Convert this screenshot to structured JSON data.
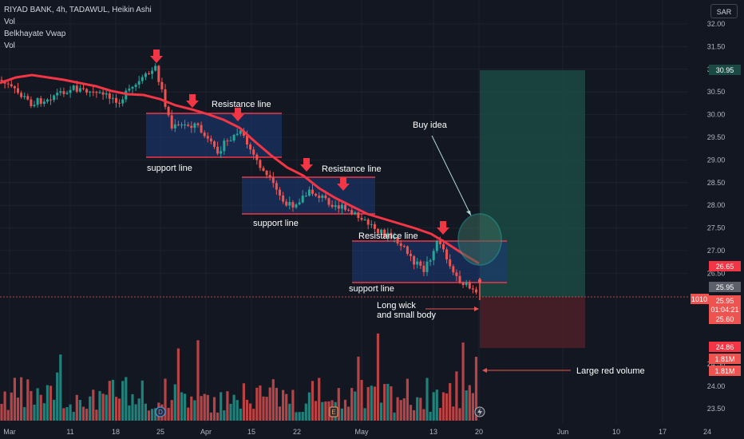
{
  "legend": {
    "symbol_line": "RIYAD BANK, 4h, TADAWUL, Heikin Ashi",
    "vol1": "Vol",
    "vwap": "Belkhayate Vwap",
    "vol2": "Vol"
  },
  "currency": "SAR",
  "colors": {
    "background": "#131722",
    "bull": "#26a69a",
    "bear": "#ef5350",
    "vwap_line": "#f23645",
    "zone_fill": "#1c3a7a",
    "target_zone": "#1b4a44",
    "stop_zone": "#4a1f27",
    "grid": "#1e222d",
    "axis_text": "#b2b5be"
  },
  "chart_data": {
    "type": "candlestick",
    "title": "RIYAD BANK, 4h, TADAWUL, Heikin Ashi",
    "y_axis": {
      "ticks": [
        "31.50",
        "31.00",
        "30.50",
        "30.00",
        "29.50",
        "29.00",
        "28.50",
        "28.00",
        "27.50",
        "27.00",
        "26.50",
        "26.00",
        "25.50",
        "25.00",
        "24.50",
        "24.00",
        "23.50"
      ],
      "price_ticks": [
        "32.00",
        "31.50",
        "31.00",
        "30.50",
        "30.00",
        "29.50",
        "29.00",
        "28.50",
        "28.00",
        "27.50",
        "27.00",
        "26.50"
      ],
      "volume_ticks": [
        "24.50",
        "24.00",
        "23.50"
      ],
      "top_label": "32.00"
    },
    "x_axis": {
      "ticks": [
        "Mar",
        "11",
        "18",
        "25",
        "Apr",
        "15",
        "22",
        "May",
        "13",
        "20",
        "Jun",
        "10",
        "17",
        "24"
      ]
    },
    "price_badges": [
      {
        "label": "30.95",
        "color": "#1b4a44"
      },
      {
        "label": "26.65",
        "color": "#f23645"
      },
      {
        "label": "25.95",
        "color": "#5d606b"
      },
      {
        "label": "25.95",
        "sub": "01:04:21",
        "color": "#ef5350"
      },
      {
        "label": "25.60",
        "color": "#ef5350"
      },
      {
        "label": "24.86",
        "color": "#f23645"
      },
      {
        "label": "1.81M",
        "color": "#ef5350"
      },
      {
        "label": "1.81M",
        "color": "#ef5350"
      }
    ],
    "left_badge": "1010",
    "vwap_line": [
      {
        "time": "Mar",
        "price": 30.8
      },
      {
        "time": "11",
        "price": 30.7
      },
      {
        "time": "18",
        "price": 30.5
      },
      {
        "time": "25",
        "price": 30.45
      },
      {
        "time": "Apr",
        "price": 30.1
      },
      {
        "time": "15",
        "price": 29.7
      },
      {
        "time": "22",
        "price": 28.7
      },
      {
        "time": "May",
        "price": 27.9
      },
      {
        "time": "13",
        "price": 27.4
      },
      {
        "time": "20",
        "price": 26.65
      }
    ],
    "zones": [
      {
        "name": "zone-1",
        "resistance": 30.0,
        "support": 29.0
      },
      {
        "name": "zone-2",
        "resistance": 28.55,
        "support": 27.75
      },
      {
        "name": "zone-3",
        "resistance": 27.2,
        "support": 26.25
      }
    ],
    "trade": {
      "entry": 25.95,
      "target": 30.95,
      "stop": 25.0
    }
  },
  "annotations": {
    "resistance_1": "Resistance line",
    "resistance_2": "Resistance line",
    "resistance_3": "Resistance line",
    "support_1": "support line",
    "support_2": "support line",
    "support_3": "support line",
    "buy_idea": "Buy idea",
    "long_wick_1": "Long wick",
    "long_wick_2": "and small body",
    "large_red_volume": "Large red volume"
  },
  "event_markers": [
    "D",
    "E"
  ]
}
